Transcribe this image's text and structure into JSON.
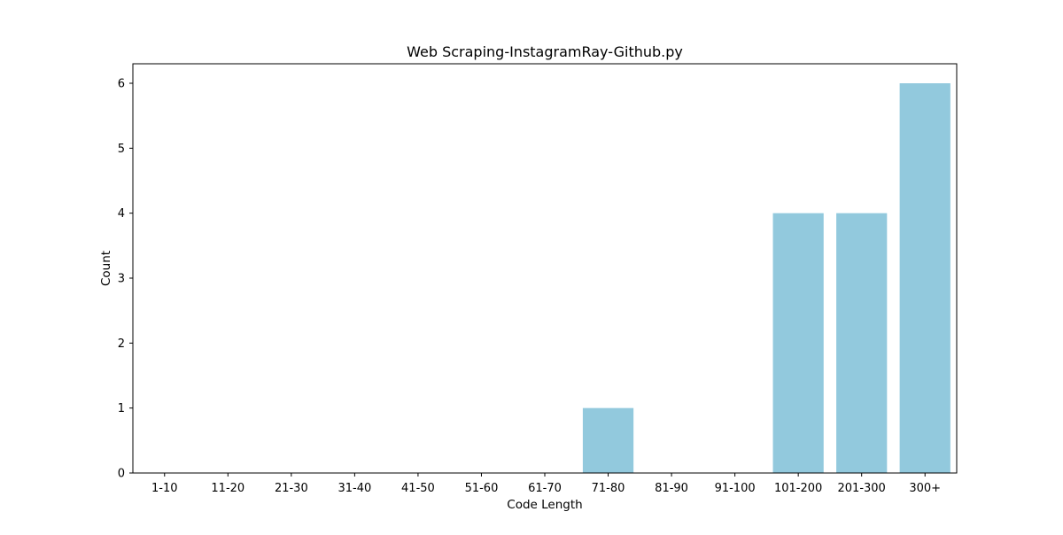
{
  "chart_data": {
    "type": "bar",
    "title": "Web Scraping-InstagramRay-Github.py",
    "xlabel": "Code Length",
    "ylabel": "Count",
    "categories": [
      "1-10",
      "11-20",
      "21-30",
      "31-40",
      "41-50",
      "51-60",
      "61-70",
      "71-80",
      "81-90",
      "91-100",
      "101-200",
      "201-300",
      "300+"
    ],
    "values": [
      0,
      0,
      0,
      0,
      0,
      0,
      0,
      1,
      0,
      0,
      4,
      4,
      6
    ],
    "ylim": [
      0,
      6.3
    ],
    "yticks": [
      0,
      1,
      2,
      3,
      4,
      5,
      6
    ],
    "bar_color": "#92c9dd",
    "grid": false,
    "legend": "none"
  }
}
